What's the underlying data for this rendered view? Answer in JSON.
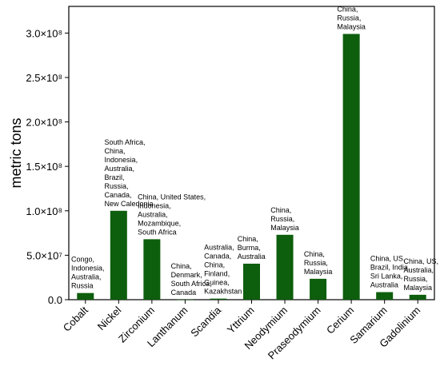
{
  "chart_data": {
    "type": "bar",
    "title": "",
    "xlabel": "",
    "ylabel": "metric tons",
    "ylim": [
      0,
      330000000
    ],
    "yticks": [
      {
        "value": 0,
        "label": "0.0"
      },
      {
        "value": 50000000,
        "label": "5.0×10⁷"
      },
      {
        "value": 100000000,
        "label": "1.0×10⁸"
      },
      {
        "value": 150000000,
        "label": "1.5×10⁸"
      },
      {
        "value": 200000000,
        "label": "2.0×10⁸"
      },
      {
        "value": 250000000,
        "label": "2.5×10⁸"
      },
      {
        "value": 300000000,
        "label": "3.0×10⁸"
      }
    ],
    "grid": false,
    "bar_color": "#0d5e0d",
    "categories": [
      "Cobalt",
      "Nickel",
      "Zirconium",
      "Lanthanum",
      "Scandia",
      "Yttrium",
      "Neodymium",
      "Praseodymium",
      "Cerium",
      "Samarium",
      "Gadolinium"
    ],
    "values": [
      7500000,
      100000000,
      68000000,
      200000,
      1200000,
      40500000,
      73000000,
      23500000,
      299000000,
      8500000,
      5500000
    ],
    "annotations": [
      [
        "Congo,",
        "Indonesia,",
        "Australia,",
        "Russia"
      ],
      [
        "South Africa,",
        "China,",
        "Indonesia,",
        "Australia,",
        "Brazil,",
        "Russia,",
        "Canada,",
        "New Caledonia"
      ],
      [
        "China, United States,",
        "Indonesia,",
        "Australia,",
        "Mozambique,",
        "South Africa"
      ],
      [
        "China,",
        "Denmark,",
        "South Africa,",
        "Canada"
      ],
      [
        "Australia,",
        "Canada,",
        "China,",
        "Finland,",
        "Guinea,",
        "Kazakhstan"
      ],
      [
        "China,",
        "Burma,",
        "Australia"
      ],
      [
        "China,",
        "Russia,",
        "Malaysia"
      ],
      [
        "China,",
        "Russia,",
        "Malaysia"
      ],
      [
        "China,",
        "Russia,",
        "Malaysia"
      ],
      [
        "China, US,",
        "Brazil, India,",
        "Sri Lanka,",
        " Australia"
      ],
      [
        "China, US,",
        "Australia,",
        "Russia,",
        "Malaysia"
      ]
    ]
  }
}
